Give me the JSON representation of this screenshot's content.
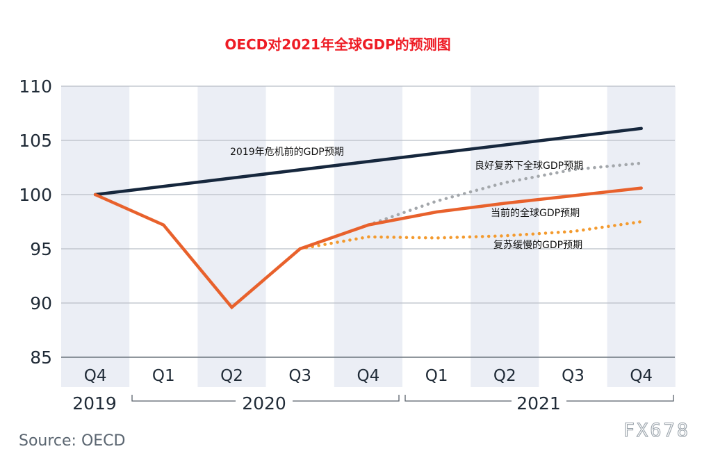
{
  "chart_data": {
    "type": "line",
    "title": "OECD对2021年全球GDP的预测图",
    "source": "Source: OECD",
    "watermark": "FX678",
    "categories": [
      "Q4",
      "Q1",
      "Q2",
      "Q3",
      "Q4",
      "Q1",
      "Q2",
      "Q3",
      "Q4"
    ],
    "year_labels": [
      "2019",
      "2020",
      "2021"
    ],
    "ylim": [
      85,
      110
    ],
    "yticks": [
      85,
      90,
      95,
      100,
      105,
      110
    ],
    "grid": true,
    "colors": {
      "precrisis": "#16273d",
      "current": "#e8612c",
      "good": "#a3a7ab",
      "slow": "#f39a2e",
      "band": "#ebeef5",
      "title": "#ee1c25"
    },
    "series": [
      {
        "name": "2019年危机前的GDP预期",
        "key": "precrisis",
        "style": "solid",
        "points": [
          [
            0,
            100.0
          ],
          [
            8,
            106.1
          ]
        ]
      },
      {
        "name": "当前的全球GDP预期",
        "key": "current",
        "style": "solid",
        "points": [
          [
            0,
            100.0
          ],
          [
            1,
            97.2
          ],
          [
            2,
            89.6
          ],
          [
            3,
            95.0
          ],
          [
            4,
            97.2
          ],
          [
            5,
            98.4
          ],
          [
            6,
            99.2
          ],
          [
            7,
            99.9
          ],
          [
            8,
            100.6
          ]
        ]
      },
      {
        "name": "良好复苏下全球GDP预期",
        "key": "good",
        "style": "dotted",
        "points": [
          [
            4,
            97.2
          ],
          [
            5,
            99.4
          ],
          [
            6,
            101.1
          ],
          [
            7,
            102.3
          ],
          [
            8,
            102.9
          ]
        ]
      },
      {
        "name": "复苏缓慢的GDP预期",
        "key": "slow",
        "style": "dotted",
        "points": [
          [
            3,
            95.0
          ],
          [
            4,
            96.1
          ],
          [
            5,
            96.0
          ],
          [
            6,
            96.2
          ],
          [
            7,
            96.6
          ],
          [
            8,
            97.5
          ]
        ]
      }
    ],
    "annotations": [
      {
        "text": "2019年危机前的GDP预期",
        "series": "precrisis"
      },
      {
        "text": "良好复苏下全球GDP预期",
        "series": "good"
      },
      {
        "text": "当前的全球GDP预期",
        "series": "current"
      },
      {
        "text": "复苏缓慢的GDP预期",
        "series": "slow"
      }
    ]
  }
}
